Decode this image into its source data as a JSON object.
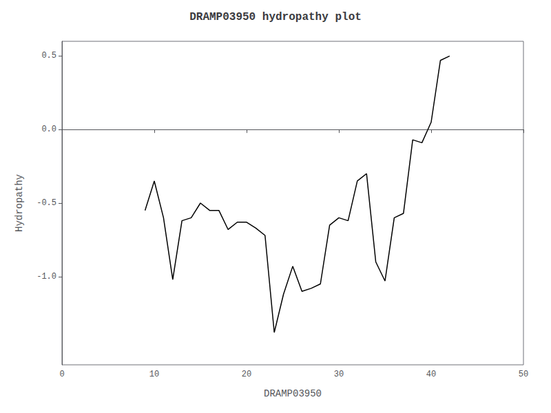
{
  "chart_data": {
    "type": "line",
    "title": "DRAMP03950 hydropathy plot",
    "xlabel": "DRAMP03950",
    "ylabel": "Hydropathy",
    "x": [
      9,
      10,
      11,
      12,
      13,
      14,
      15,
      16,
      17,
      18,
      19,
      20,
      21,
      22,
      23,
      24,
      25,
      26,
      27,
      28,
      29,
      30,
      31,
      32,
      33,
      34,
      35,
      36,
      37,
      38,
      39,
      40,
      41,
      42
    ],
    "values": [
      -0.55,
      -0.35,
      -0.6,
      -1.02,
      -0.62,
      -0.6,
      -0.5,
      -0.55,
      -0.55,
      -0.68,
      -0.63,
      -0.63,
      -0.67,
      -0.72,
      -1.38,
      -1.12,
      -0.93,
      -1.1,
      -1.08,
      -1.05,
      -0.65,
      -0.6,
      -0.62,
      -0.35,
      -0.3,
      -0.9,
      -1.03,
      -0.6,
      -0.57,
      -0.07,
      -0.09,
      0.05,
      0.47,
      0.5
    ],
    "color": "black",
    "xlim": [
      0,
      50
    ],
    "xticks": [
      0,
      10,
      20,
      30,
      40,
      50
    ],
    "ylim": [
      -1.6,
      0.6
    ],
    "yticks": [
      {
        "value": -1.0,
        "label": "-1.0"
      },
      -0.5,
      {
        "value": 0.0,
        "label": "0.0"
      },
      0.5
    ],
    "grid": false
  }
}
